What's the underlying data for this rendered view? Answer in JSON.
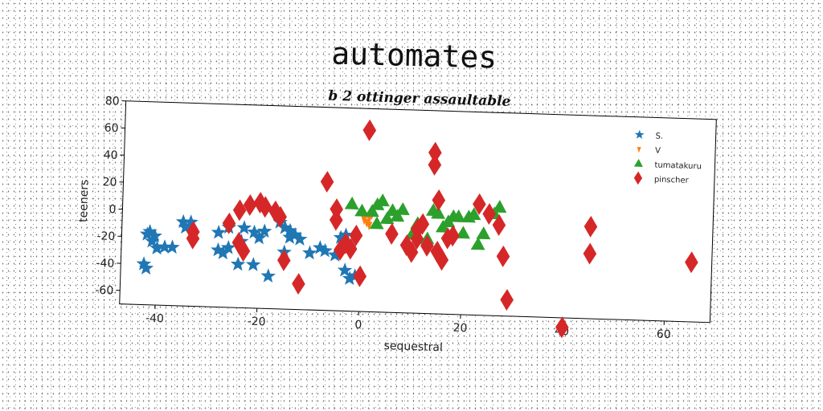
{
  "chart_data": {
    "type": "scatter",
    "title": "automates",
    "subtitle": "b 2 ottinger assaultable",
    "xlabel": "sequestral",
    "ylabel": "teeners",
    "xlim": [
      -47,
      69
    ],
    "ylim": [
      -70,
      80
    ],
    "xticks": [
      -40,
      -20,
      0,
      20,
      40,
      60
    ],
    "yticks": [
      -60,
      -40,
      -20,
      0,
      20,
      40,
      60,
      80
    ],
    "grid": false,
    "legend_position": "top-right",
    "series": [
      {
        "name": "S.",
        "marker": "star",
        "color": "#1f77b4",
        "points": [
          [
            -41.5,
            -16
          ],
          [
            -42,
            -18
          ],
          [
            -40.5,
            -19
          ],
          [
            -41,
            -23
          ],
          [
            -40,
            -28
          ],
          [
            -38.5,
            -27
          ],
          [
            -37,
            -27
          ],
          [
            -35,
            -8
          ],
          [
            -33.5,
            -8
          ],
          [
            -34.5,
            -12
          ],
          [
            -42.5,
            -40
          ],
          [
            -42,
            -43
          ],
          [
            -28,
            -15
          ],
          [
            -26,
            -11
          ],
          [
            -23,
            -11
          ],
          [
            -21,
            -14
          ],
          [
            -20,
            -18
          ],
          [
            -19,
            -13
          ],
          [
            -23.5,
            -21
          ],
          [
            -26,
            -26
          ],
          [
            -28,
            -28
          ],
          [
            -27,
            -30
          ],
          [
            -21,
            -38
          ],
          [
            -24,
            -38
          ],
          [
            -18,
            -46
          ],
          [
            -16,
            -6
          ],
          [
            -15,
            -10
          ],
          [
            -14,
            -12
          ],
          [
            -13,
            -15
          ],
          [
            -12,
            -18
          ],
          [
            -14,
            -17
          ],
          [
            -15,
            -28
          ],
          [
            -10,
            -28
          ],
          [
            -8,
            -24
          ],
          [
            -7,
            -26
          ],
          [
            -5,
            -29
          ],
          [
            -4,
            -16
          ],
          [
            -3,
            -14
          ],
          [
            -3,
            -40
          ],
          [
            -2,
            -46
          ],
          [
            -1,
            -44
          ]
        ]
      },
      {
        "name": "V",
        "marker": "tri_down",
        "color": "#ff7f0e",
        "points": [
          [
            1,
            -4
          ],
          [
            1.5,
            -1
          ],
          [
            1.5,
            -6
          ],
          [
            2,
            2
          ],
          [
            0.5,
            -2
          ]
        ]
      },
      {
        "name": "tumatakuru",
        "marker": "triangle",
        "color": "#2ca02c",
        "points": [
          [
            -2,
            9
          ],
          [
            0,
            4
          ],
          [
            2,
            4
          ],
          [
            3,
            9
          ],
          [
            3,
            -5
          ],
          [
            4,
            12
          ],
          [
            5,
            -1
          ],
          [
            6,
            5
          ],
          [
            7,
            1
          ],
          [
            8,
            6
          ],
          [
            10,
            -12
          ],
          [
            11,
            -4
          ],
          [
            13,
            -15
          ],
          [
            14,
            6
          ],
          [
            15,
            4
          ],
          [
            16,
            -6
          ],
          [
            17,
            -2
          ],
          [
            18,
            2
          ],
          [
            19,
            2
          ],
          [
            20,
            -10
          ],
          [
            21,
            2
          ],
          [
            22,
            4
          ],
          [
            23,
            -18
          ],
          [
            24,
            -10
          ],
          [
            26,
            5
          ],
          [
            27,
            10
          ]
        ]
      },
      {
        "name": "pinscher",
        "marker": "diamond",
        "color": "#d62728",
        "points": [
          [
            1,
            64
          ],
          [
            14,
            49
          ],
          [
            14,
            40
          ],
          [
            15,
            14
          ],
          [
            -7,
            25
          ],
          [
            -5,
            5
          ],
          [
            -5,
            -3
          ],
          [
            -1,
            -14
          ],
          [
            -3,
            -20
          ],
          [
            -2,
            -24
          ],
          [
            0,
            -44
          ],
          [
            -4,
            -25
          ],
          [
            -24,
            2
          ],
          [
            -22,
            6
          ],
          [
            -20,
            8
          ],
          [
            -19,
            5
          ],
          [
            -17,
            2
          ],
          [
            -16,
            -2
          ],
          [
            -33,
            -15
          ],
          [
            -33,
            -20
          ],
          [
            -26,
            -8
          ],
          [
            -24,
            -22
          ],
          [
            -23,
            -28
          ],
          [
            -15,
            -34
          ],
          [
            -12,
            -51
          ],
          [
            6,
            -12
          ],
          [
            9,
            -20
          ],
          [
            10,
            -25
          ],
          [
            11,
            -8
          ],
          [
            11,
            -15
          ],
          [
            12,
            -4
          ],
          [
            13,
            -20
          ],
          [
            15,
            -24
          ],
          [
            16,
            -30
          ],
          [
            17,
            -14
          ],
          [
            18,
            -12
          ],
          [
            23,
            12
          ],
          [
            25,
            5
          ],
          [
            27,
            -3
          ],
          [
            28,
            -26
          ],
          [
            29,
            -58
          ],
          [
            40,
            -77
          ],
          [
            45,
            -2
          ],
          [
            45,
            -22
          ],
          [
            65,
            -26
          ]
        ]
      }
    ]
  }
}
